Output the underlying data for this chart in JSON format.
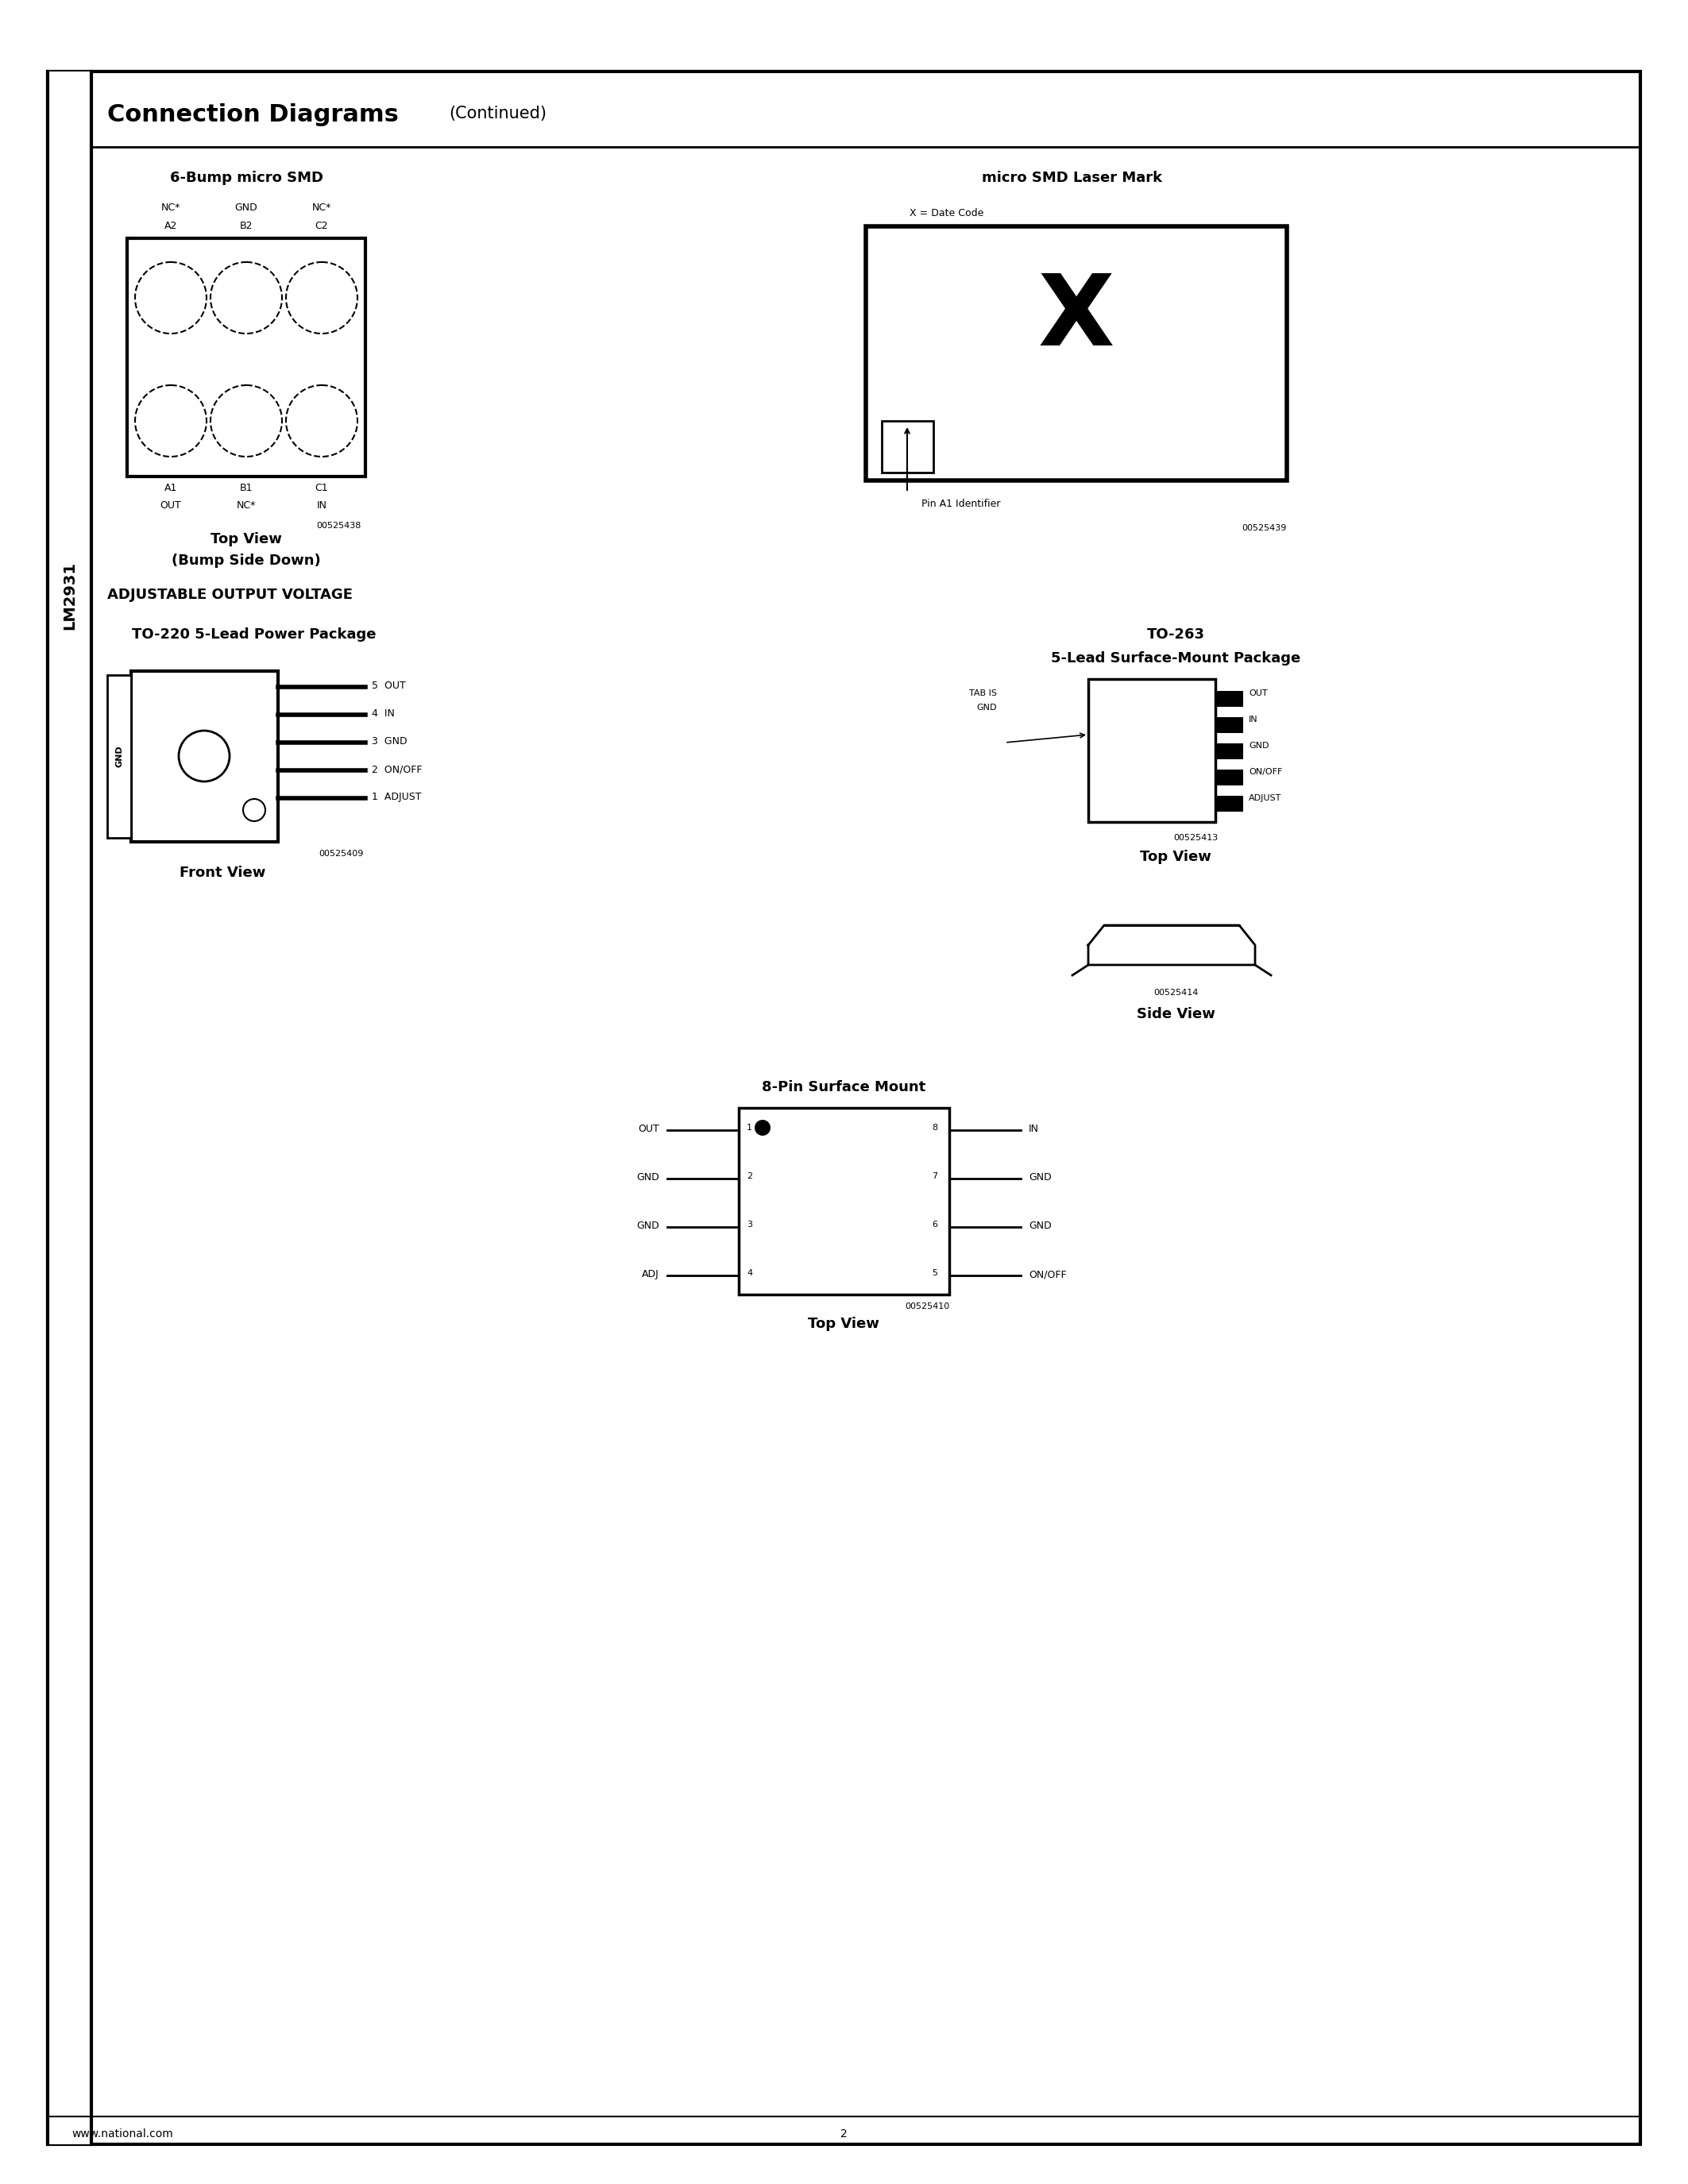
{
  "page_bg": "#ffffff",
  "border_color": "#000000",
  "title": "Connection Diagrams",
  "title_continued": "(Continued)",
  "sidebar_text": "LM2931",
  "section1_title": "6-Bump micro SMD",
  "section2_title": "micro SMD Laser Mark",
  "section3_title": "ADJUSTABLE OUTPUT VOLTAGE",
  "section4_title": "TO-220 5-Lead Power Package",
  "section5_title": "TO-263",
  "section5_subtitle": "5-Lead Surface-Mount Package",
  "section6_title": "8-Pin Surface Mount",
  "footer_left": "www.national.com",
  "footer_center": "2"
}
